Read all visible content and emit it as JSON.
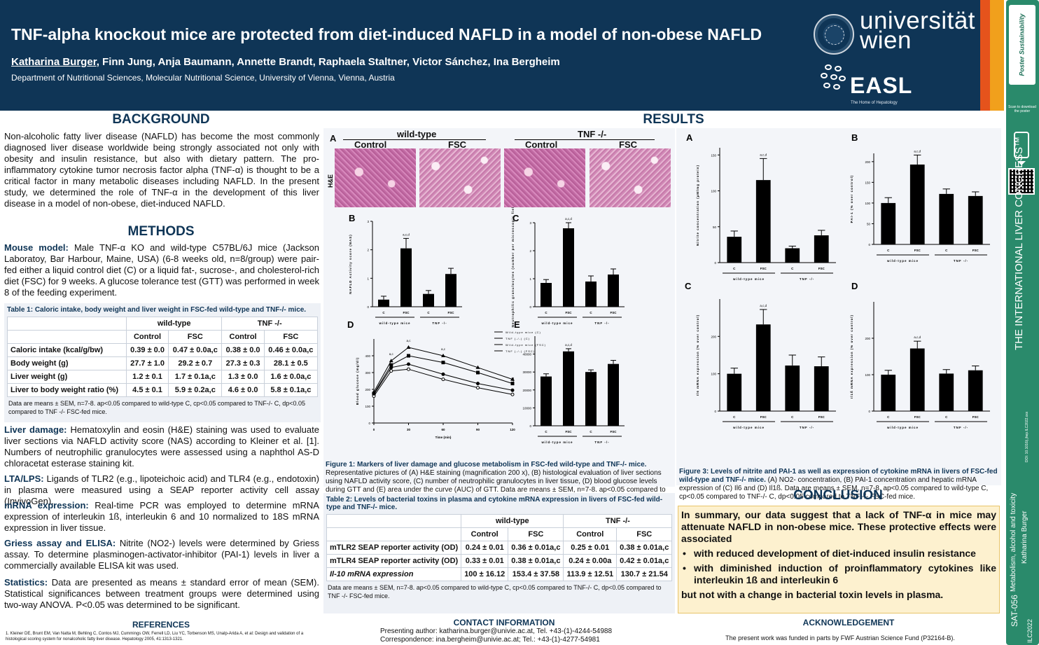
{
  "header": {
    "title": "TNF-alpha knockout mice are protected from diet-induced NAFLD in a model of non-obese NAFLD",
    "presenting_author": "Katharina Burger",
    "other_authors": ", Finn Jung, Anja Baumann, Annette Brandt, Raphaela Staltner, Victor Sánchez, Ina Bergheim",
    "department": "Department of Nutritional Sciences, Molecular Nutritional Science, University of Vienna, Vienna, Austria",
    "uni_logo": "universität\nwien",
    "easl_logo": "EASL",
    "easl_tagline": "The Home of Hepatology"
  },
  "sidebar": {
    "logo": "Poster Sustainability",
    "scan_text": "Scan to download the poster",
    "congress": "THE INTERNATIONAL LIVER CONGRESS™",
    "doi": "DOI: 10.1016/j.jhep.ILC2022.xxx",
    "topic": "Metabolism, alcohol and toxicity",
    "author": "Katharina Burger",
    "code": "SAT-056",
    "ilc": "ILC2022"
  },
  "background": {
    "title": "BACKGROUND",
    "text": "Non-alcoholic fatty liver disease (NAFLD) has become the most commonly diagnosed liver disease worldwide being strongly associated not only with obesity and insulin resistance, but also with dietary pattern. The pro-inflammatory cytokine tumor necrosis factor alpha (TNF-α) is thought to be a critical factor in many metabolic diseases including NAFLD. In the present study, we determined the role of TNF-α in the development of this liver disease in a model of non-obese, diet-induced NAFLD."
  },
  "methods": {
    "title": "METHODS",
    "mouse_label": "Mouse model:",
    "mouse_text": " Male TNF-α KO and wild-type C57BL/6J mice (Jackson Laboratoy, Bar Harbour, Maine, USA) (6-8 weeks old, n=8/group) were pair-fed either a liquid control diet (C) or a liquid fat-, sucrose-, and cholesterol-rich diet (FSC) for 9 weeks. A glucose tolerance test (GTT) was performed in week 8 of the feeding experiment.",
    "liver_label": "Liver damage:",
    "liver_text": " Hematoxylin and eosin (H&E) staining was used to evaluate liver sections via NAFLD activity score (NAS) according to Kleiner et al. [1]. Numbers of neutrophilic granulocytes were assessed using a naphthol AS-D chloracetat esterase staining kit.",
    "lta_label": "LTA/LPS:",
    "lta_text": " Ligands of TLR2 (e.g., lipoteichoic acid) and TLR4 (e.g., endotoxin) in plasma were measured using a SEAP reporter activity cell assay (InvivoGen).",
    "mrna_label": "mRNA expression:",
    "mrna_text": " Real-time PCR was employed to determine mRNA expression of interleukin 1ß, interleukin 6 and 10 normalized to 18S mRNA expression in liver tissue.",
    "griess_label": "Griess assay and ELISA:",
    "griess_text": " Nitrite (NO2-) levels were determined by Griess assay. To determine plasminogen-activator-inhibitor (PAI-1) levels in liver a commercially available ELISA kit was used.",
    "stats_label": "Statistics:",
    "stats_text": " Data are presented as means ± standard error of mean (SEM). Statistical significances between treatment groups were determined using two-way ANOVA. P<0.05 was determined to be significant."
  },
  "table1": {
    "caption": "Table 1: Caloric intake, body weight and liver weight in FSC-fed wild-type and TNF-/- mice.",
    "group1": "wild-type",
    "group2": "TNF -/-",
    "cols": [
      "Control",
      "FSC",
      "Control",
      "FSC"
    ],
    "rows": [
      {
        "label": "Caloric intake (kcal/g/bw)",
        "v": [
          "0.39 ± 0.0",
          "0.47 ± 0.0a,c",
          "0.38 ± 0.0",
          "0.46 ± 0.0a,c"
        ]
      },
      {
        "label": "Body weight (g)",
        "v": [
          "27.7 ± 1.0",
          "29.2 ± 0.7",
          "27.3 ± 0.3",
          "28.1 ± 0.5"
        ]
      },
      {
        "label": "Liver weight (g)",
        "v": [
          "1.2 ± 0.1",
          "1.7 ± 0.1a,c",
          "1.3 ± 0.0",
          "1.6 ± 0.0a,c"
        ]
      },
      {
        "label": "Liver to body weight ratio (%)",
        "v": [
          "4.5 ± 0.1",
          "5.9 ± 0.2a,c",
          "4.6 ± 0.0",
          "5.8 ± 0.1a,c"
        ]
      }
    ],
    "note": "Data are means ± SEM, n=7-8. ap<0.05 compared to wild-type C, cp<0.05 compared to TNF-/- C, dp<0.05 compared to TNF -/- FSC-fed mice."
  },
  "results": {
    "title": "RESULTS"
  },
  "figure1": {
    "label_A": "A",
    "wt": "wild-type",
    "tnf": "TNF -/-",
    "control": "Control",
    "fsc": "FSC",
    "he": "H&E",
    "caption_bold": "Figure 1: Markers of liver damage and glucose metabolism in FSC-fed wild-type and TNF-/- mice.",
    "caption": " Representative pictures of (A) H&E staining (magnification 200 x), (B) histological evaluation of liver sections using NAFLD activity score, (C) number of neutrophilic granulocytes in liver tissue, (D) blood glucose levels during GTT and (E) area under the curve (AUC) of GTT. Data are means ± SEM, n=7-8. ap<0.05 compared to wild-type C, cp<0.05 compared to TNF-/- C, dp<0.05 compared to TNF -/- FSC-fed mice."
  },
  "table2": {
    "caption": "Table 2: Levels of bacterial toxins in plasma and cytokine mRNA expression in livers of FSC-fed wild-type and TNF-/- mice.",
    "group1": "wild-type",
    "group2": "TNF -/-",
    "cols": [
      "Control",
      "FSC",
      "Control",
      "FSC"
    ],
    "rows": [
      {
        "label": "mTLR2 SEAP reporter activity (OD)",
        "v": [
          "0.24 ± 0.01",
          "0.36 ± 0.01a,c",
          "0.25 ± 0.01",
          "0.38 ± 0.01a,c"
        ]
      },
      {
        "label": "mTLR4 SEAP reporter activity (OD)",
        "v": [
          "0.33 ± 0.01",
          "0.38 ± 0.01a,c",
          "0.24 ± 0.00a",
          "0.42 ± 0.01a,c"
        ]
      },
      {
        "label": "Il-10 mRNA expression",
        "v": [
          "100 ± 16.12",
          "153.4 ± 37.58",
          "113.9 ± 12.51",
          "130.7 ± 21.54"
        ]
      }
    ],
    "note": "Data are means ± SEM, n=7-8. ap<0.05 compared to wild-type C, cp<0.05 compared to TNF-/- C, dp<0.05 compared to TNF -/- FSC-fed mice."
  },
  "figure3": {
    "caption_bold": "Figure 3: Levels of nitrite and PAI-1 as well as expression of cytokine mRNA in livers of FSC-fed wild-type and TNF-/- mice.",
    "caption": " (A) NO2- concentration, (B) PAI-1 concentration and hepatic mRNA expression of (C) Il6 and (D) Il1ß. Data are means ± SEM, n=7-8. ap<0.05 compared to wild-type C, cp<0.05 compared to TNF-/- C, dp<0.05 compared to TNF -/- FSC-fed mice."
  },
  "conclusion": {
    "title": "CONCLUSION",
    "lead": "In summary, our data suggest that a lack of TNF-α in mice may attenuate NAFLD in non-obese mice. These protective effects were associated",
    "bullets": [
      "with reduced development of diet-induced insulin resistance",
      "with diminished induction of proinflammatory cytokines like interleukin 1ß and interleukin 6"
    ],
    "tail": "but not with a change in bacterial toxin levels in plasma."
  },
  "footer": {
    "ref_title": "REFERENCES",
    "ref_text": "1. Kleiner DE, Brunt EM, Van Natta M, Behling C, Contos MJ, Cummings OW, Ferrell LD, Liu YC, Torbenson MS, Unalp-Arida A, et al: Design and validation of a histological scoring system for nonalcoholic fatty liver disease. Hepatology 2005, 41:1313-1321.",
    "contact_title": "CONTACT INFORMATION",
    "contact_1": "Presenting author: katharina.burger@univie.ac.at, Tel. +43-(1)-4244-54988",
    "contact_2": "Correspondence: ina.bergheim@univie.ac.at; Tel.: +43-(1)-4277-54981",
    "ack_title": "ACKNOWLEDGEMENT",
    "ack_text": "The present work was funded in parts by FWF Austrian Science Fund (P32164-B)."
  },
  "chart_data": [
    {
      "id": "1B",
      "type": "bar",
      "ylabel": "NAFLD Activity score (NAS)",
      "ylim": [
        0,
        3
      ],
      "yticks": [
        0,
        1,
        2,
        3
      ],
      "categories": [
        "C",
        "FSC",
        "C",
        "FSC"
      ],
      "groups": [
        "wild-type mice",
        "TNF -/-"
      ],
      "values": [
        0.25,
        2.05,
        0.45,
        1.15
      ],
      "errors": [
        0.12,
        0.35,
        0.12,
        0.2
      ],
      "annotations": [
        "",
        "a,c,d",
        "",
        ""
      ]
    },
    {
      "id": "1C",
      "type": "bar",
      "ylabel": "Neutrophilic granulocytes (number per microscopic field)",
      "ylim": [
        0,
        3
      ],
      "yticks": [
        0,
        1,
        2,
        3
      ],
      "categories": [
        "C",
        "FSC",
        "C",
        "FSC"
      ],
      "groups": [
        "wild-type mice",
        "TNF -/-"
      ],
      "values": [
        0.85,
        2.8,
        0.9,
        1.15
      ],
      "errors": [
        0.12,
        0.2,
        0.2,
        0.2
      ],
      "annotations": [
        "",
        "a,c,d",
        "",
        ""
      ]
    },
    {
      "id": "1D",
      "type": "line",
      "xlabel": "Time (min)",
      "ylabel": "Blood glucose (mg/dl)",
      "x": [
        0,
        15,
        30,
        60,
        90,
        120
      ],
      "xticks": [
        0,
        30,
        60,
        90,
        120
      ],
      "ylim": [
        0,
        500
      ],
      "yticks": [
        0,
        100,
        200,
        300,
        400
      ],
      "series": [
        {
          "name": "Wild-type mice (C)",
          "values": [
            170,
            330,
            350,
            290,
            235,
            195
          ]
        },
        {
          "name": "TNF (-/-) (C)",
          "values": [
            160,
            310,
            320,
            260,
            210,
            170
          ]
        },
        {
          "name": "Wild-type mice (FSC)",
          "values": [
            185,
            370,
            450,
            400,
            330,
            260
          ]
        },
        {
          "name": "TNF (-/-) (FSC)",
          "values": [
            175,
            345,
            400,
            360,
            300,
            235
          ]
        }
      ],
      "annotations": [
        "a,c",
        "a,c",
        "a,c"
      ]
    },
    {
      "id": "1E",
      "type": "bar",
      "ylabel": "AUC",
      "ylim": [
        0,
        50000
      ],
      "yticks": [
        0,
        10000,
        20000,
        30000,
        40000
      ],
      "categories": [
        "C",
        "FSC",
        "C",
        "FSC"
      ],
      "groups": [
        "wild-type mice",
        "TNF -/-"
      ],
      "values": [
        27500,
        41500,
        30000,
        34500
      ],
      "errors": [
        1500,
        1500,
        1200,
        2000
      ],
      "annotations": [
        "",
        "a,c,d",
        "",
        ""
      ]
    },
    {
      "id": "3A",
      "type": "bar",
      "ylabel": "Nitrite concentration (µM/mg protein)",
      "ylim": [
        0,
        160
      ],
      "yticks": [
        0,
        50,
        100,
        150
      ],
      "categories": [
        "C",
        "FSC",
        "C",
        "FSC"
      ],
      "groups": [
        "wild-type mice",
        "TNF -/-"
      ],
      "values": [
        36,
        115,
        20,
        38
      ],
      "errors": [
        8,
        30,
        3,
        7
      ],
      "annotations": [
        "",
        "a,c,d",
        "",
        ""
      ]
    },
    {
      "id": "3B",
      "type": "bar",
      "ylabel": "PAI-1 (% over control)",
      "ylim": [
        0,
        220
      ],
      "yticks": [
        0,
        50,
        100,
        150,
        200
      ],
      "categories": [
        "C",
        "FSC",
        "C",
        "FSC"
      ],
      "groups": [
        "wild-type mice",
        "TNF -/-"
      ],
      "values": [
        100,
        193,
        122,
        117
      ],
      "errors": [
        13,
        23,
        12,
        10
      ],
      "annotations": [
        "",
        "a,c,d",
        "",
        ""
      ]
    },
    {
      "id": "3C",
      "type": "bar",
      "ylabel": "Il6 mRNA expression (% over control)",
      "ylim": [
        0,
        300
      ],
      "yticks": [
        0,
        100,
        200
      ],
      "categories": [
        "C",
        "FSC",
        "C",
        "FSC"
      ],
      "groups": [
        "wild-type mice",
        "TNF -/-"
      ],
      "values": [
        100,
        232,
        122,
        120
      ],
      "errors": [
        15,
        40,
        28,
        25
      ],
      "annotations": [
        "",
        "a,c,d",
        "",
        ""
      ]
    },
    {
      "id": "3D",
      "type": "bar",
      "ylabel": "Il1ß mRNA expression (% over control)",
      "ylim": [
        0,
        300
      ],
      "yticks": [
        0,
        100,
        200
      ],
      "categories": [
        "C",
        "FSC",
        "C",
        "FSC"
      ],
      "groups": [
        "wild-type mice",
        "TNF -/-"
      ],
      "values": [
        100,
        172,
        103,
        112
      ],
      "errors": [
        12,
        20,
        11,
        12
      ],
      "annotations": [
        "",
        "a,c,d",
        "",
        ""
      ]
    }
  ]
}
